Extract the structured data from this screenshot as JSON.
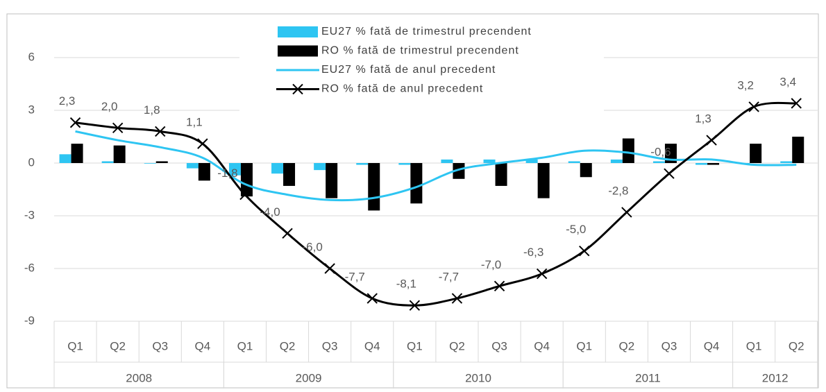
{
  "chart_data": {
    "type": "bar_line",
    "categories": [
      "Q1",
      "Q2",
      "Q3",
      "Q4",
      "Q1",
      "Q2",
      "Q3",
      "Q4",
      "Q1",
      "Q2",
      "Q3",
      "Q4",
      "Q1",
      "Q2",
      "Q3",
      "Q4",
      "Q1",
      "Q2"
    ],
    "groups": [
      {
        "label": "2008",
        "span": 4
      },
      {
        "label": "2009",
        "span": 4
      },
      {
        "label": "2010",
        "span": 4
      },
      {
        "label": "2011",
        "span": 4
      },
      {
        "label": "2012",
        "span": 2
      }
    ],
    "series": [
      {
        "name": "EU27 % fată de trimestrul precendent",
        "kind": "bar",
        "color": "#2ec5f2",
        "values": [
          0.5,
          0.1,
          0.0,
          -0.3,
          -0.7,
          -0.6,
          -0.4,
          -0.1,
          -0.1,
          0.2,
          0.2,
          0.2,
          0.1,
          0.2,
          0.1,
          -0.1,
          0.0,
          0.1
        ]
      },
      {
        "name": "RO % fată de trimestrul precendent",
        "kind": "bar",
        "color": "#000000",
        "values": [
          1.1,
          1.0,
          0.1,
          -1.0,
          -1.9,
          -1.3,
          -2.0,
          -2.7,
          -2.3,
          -0.9,
          -1.3,
          -2.0,
          -0.8,
          1.4,
          1.1,
          -0.1,
          1.1,
          1.5
        ]
      },
      {
        "name": "EU27 % fată de anul precedent",
        "kind": "line",
        "color": "#2ec5f2",
        "values": [
          1.8,
          1.3,
          0.9,
          0.3,
          -1.2,
          -1.8,
          -2.1,
          -2.0,
          -1.4,
          -0.4,
          0.0,
          0.3,
          0.7,
          0.6,
          0.2,
          0.2,
          -0.1,
          -0.1
        ]
      },
      {
        "name": "RO % fată de anul precedent",
        "kind": "line",
        "marker": "x",
        "color": "#000000",
        "values": [
          2.3,
          2.0,
          1.8,
          1.1,
          -1.8,
          -4.0,
          -6.0,
          -7.7,
          -8.1,
          -7.7,
          -7.0,
          -6.3,
          -5.0,
          -2.8,
          -0.6,
          1.3,
          3.2,
          3.4
        ],
        "value_labels": [
          "2,3",
          "2,0",
          "1,8",
          "1,1",
          "-1,8",
          "-4,0",
          "-6,0",
          "-7,7",
          "-8,1",
          "-7,7",
          "-7,0",
          "-6,3",
          "-5,0",
          "-2,8",
          "-0,6",
          "1,3",
          "3,2",
          "3,4"
        ]
      }
    ],
    "ylim": [
      -9,
      6
    ],
    "yticks": [
      -9,
      -6,
      -3,
      0,
      3,
      6
    ],
    "grid": true
  }
}
